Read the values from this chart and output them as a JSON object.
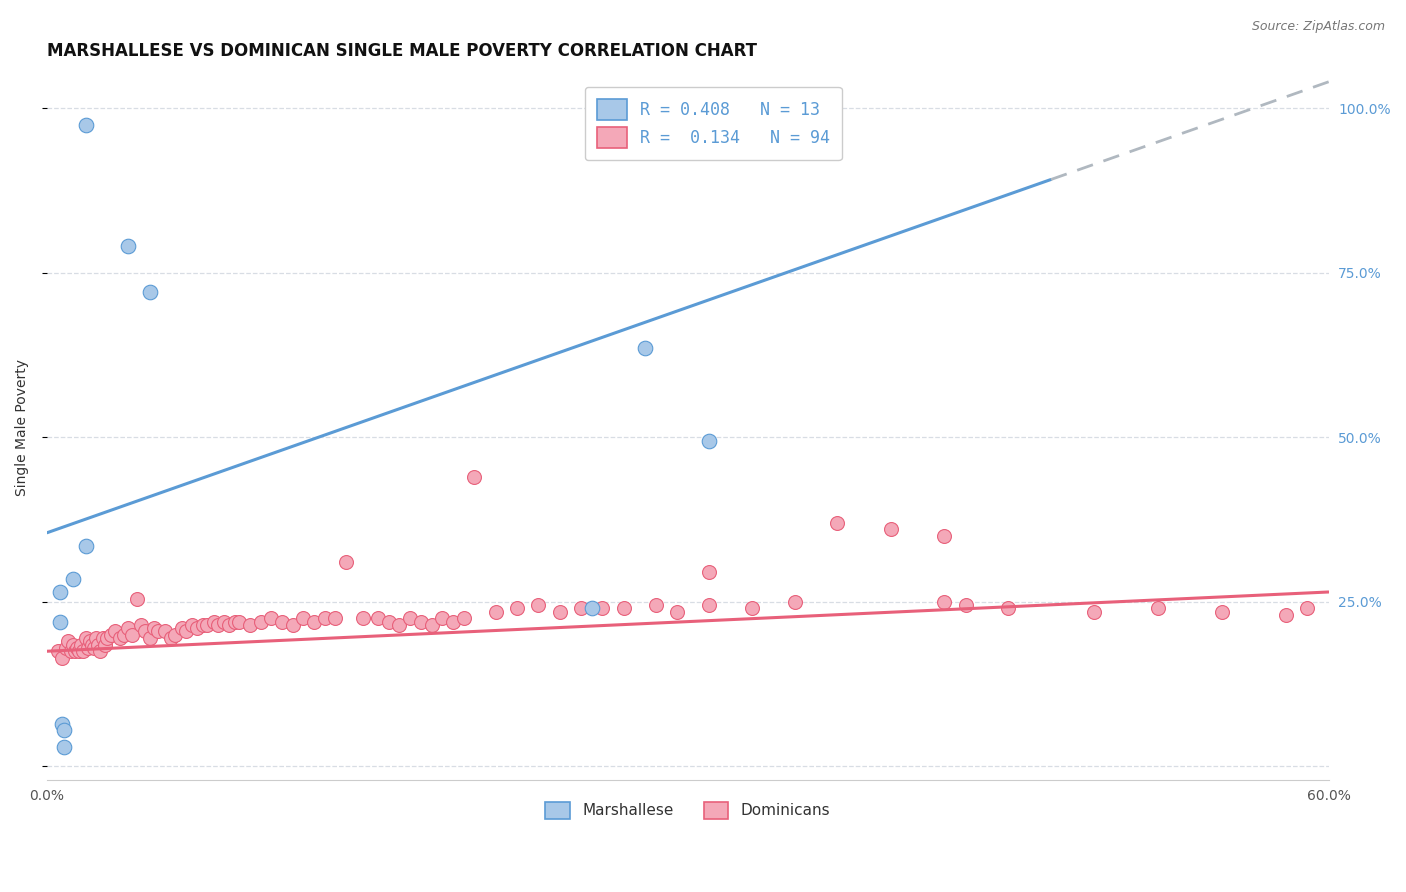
{
  "title": "MARSHALLESE VS DOMINICAN SINGLE MALE POVERTY CORRELATION CHART",
  "source": "Source: ZipAtlas.com",
  "ylabel": "Single Male Poverty",
  "xlim": [
    0.0,
    0.6
  ],
  "ylim": [
    -0.02,
    1.05
  ],
  "yticks": [
    0.0,
    0.25,
    0.5,
    0.75,
    1.0
  ],
  "xticks": [
    0.0,
    0.1,
    0.2,
    0.3,
    0.4,
    0.5,
    0.6
  ],
  "legend_r1": "R = 0.408   N = 13",
  "legend_r2": "R =  0.134   N = 94",
  "marshallese_color": "#a8c8e8",
  "dominican_color": "#f4a8b8",
  "line_blue": "#5b9bd5",
  "line_pink": "#e8607a",
  "line_gray_dash": "#b0b8c0",
  "blue_line_x0": 0.0,
  "blue_line_y0": 0.355,
  "blue_line_x1": 0.6,
  "blue_line_y1": 1.04,
  "blue_line_solid_end": 0.47,
  "pink_line_x0": 0.0,
  "pink_line_y0": 0.175,
  "pink_line_x1": 0.6,
  "pink_line_y1": 0.265,
  "marshallese_x": [
    0.018,
    0.038,
    0.048,
    0.018,
    0.012,
    0.006,
    0.006,
    0.007,
    0.008,
    0.008,
    0.28,
    0.31,
    0.255
  ],
  "marshallese_y": [
    0.975,
    0.79,
    0.72,
    0.335,
    0.285,
    0.265,
    0.22,
    0.065,
    0.055,
    0.03,
    0.635,
    0.495,
    0.24
  ],
  "dominican_x": [
    0.005,
    0.007,
    0.009,
    0.01,
    0.011,
    0.012,
    0.013,
    0.014,
    0.015,
    0.016,
    0.017,
    0.018,
    0.019,
    0.02,
    0.021,
    0.022,
    0.023,
    0.024,
    0.025,
    0.026,
    0.027,
    0.028,
    0.03,
    0.032,
    0.034,
    0.036,
    0.038,
    0.04,
    0.042,
    0.044,
    0.046,
    0.048,
    0.05,
    0.052,
    0.055,
    0.058,
    0.06,
    0.063,
    0.065,
    0.068,
    0.07,
    0.073,
    0.075,
    0.078,
    0.08,
    0.083,
    0.085,
    0.088,
    0.09,
    0.095,
    0.1,
    0.105,
    0.11,
    0.115,
    0.12,
    0.125,
    0.13,
    0.135,
    0.14,
    0.148,
    0.155,
    0.16,
    0.165,
    0.17,
    0.175,
    0.18,
    0.185,
    0.19,
    0.195,
    0.2,
    0.21,
    0.22,
    0.23,
    0.24,
    0.25,
    0.26,
    0.27,
    0.285,
    0.295,
    0.31,
    0.33,
    0.35,
    0.37,
    0.395,
    0.42,
    0.45,
    0.49,
    0.52,
    0.55,
    0.58,
    0.31,
    0.42,
    0.59,
    0.43
  ],
  "dominican_y": [
    0.175,
    0.165,
    0.18,
    0.19,
    0.175,
    0.185,
    0.175,
    0.18,
    0.175,
    0.185,
    0.175,
    0.195,
    0.18,
    0.19,
    0.185,
    0.18,
    0.195,
    0.185,
    0.175,
    0.195,
    0.185,
    0.195,
    0.2,
    0.205,
    0.195,
    0.2,
    0.21,
    0.2,
    0.255,
    0.215,
    0.205,
    0.195,
    0.21,
    0.205,
    0.205,
    0.195,
    0.2,
    0.21,
    0.205,
    0.215,
    0.21,
    0.215,
    0.215,
    0.22,
    0.215,
    0.22,
    0.215,
    0.22,
    0.22,
    0.215,
    0.22,
    0.225,
    0.22,
    0.215,
    0.225,
    0.22,
    0.225,
    0.225,
    0.31,
    0.225,
    0.225,
    0.22,
    0.215,
    0.225,
    0.22,
    0.215,
    0.225,
    0.22,
    0.225,
    0.44,
    0.235,
    0.24,
    0.245,
    0.235,
    0.24,
    0.24,
    0.24,
    0.245,
    0.235,
    0.245,
    0.24,
    0.25,
    0.37,
    0.36,
    0.25,
    0.24,
    0.235,
    0.24,
    0.235,
    0.23,
    0.295,
    0.35,
    0.24,
    0.245
  ],
  "background_color": "#ffffff",
  "grid_color": "#d8dde4",
  "title_fontsize": 12,
  "axis_label_fontsize": 10,
  "tick_fontsize": 10,
  "legend_fontsize": 12,
  "right_tick_color": "#5b9bd5"
}
